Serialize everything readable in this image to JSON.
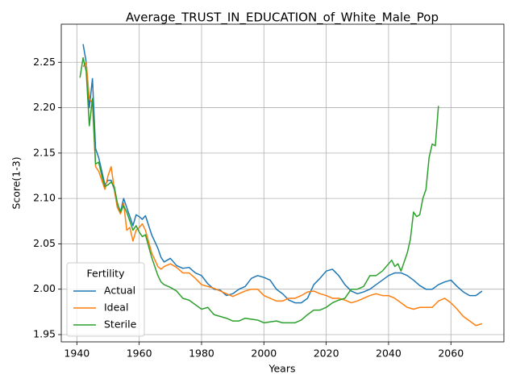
{
  "chart_data": {
    "type": "line",
    "title": "Average_TRUST_IN_EDUCATION_of_White_Male_Pop",
    "xlabel": "Years",
    "ylabel": "Score(1-3)",
    "legend_title": "Fertility",
    "legend": "lower left",
    "grid": true,
    "xlim": [
      1935,
      2077
    ],
    "xticks": [
      1940,
      1960,
      1980,
      2000,
      2020,
      2040,
      2060
    ],
    "ylim": [
      1.942,
      2.292
    ],
    "yticks": [
      1.95,
      {
        "value": 2,
        "label": "2.00"
      },
      2.05,
      {
        "value": 2.1,
        "label": "2.10"
      },
      2.15,
      {
        "value": 2.2,
        "label": "2.20"
      },
      2.25
    ],
    "series": [
      {
        "name": "Actual",
        "color": "#1f77b4",
        "x": [
          1942,
          1943,
          1944,
          1945,
          1946,
          1947,
          1948,
          1949,
          1950,
          1951,
          1952,
          1953,
          1954,
          1955,
          1956,
          1957,
          1958,
          1959,
          1960,
          1961,
          1962,
          1964,
          1966,
          1967,
          1968,
          1970,
          1972,
          1974,
          1976,
          1978,
          1980,
          1982,
          1984,
          1986,
          1988,
          1990,
          1992,
          1994,
          1996,
          1998,
          2000,
          2002,
          2004,
          2006,
          2008,
          2010,
          2012,
          2014,
          2016,
          2018,
          2020,
          2022,
          2024,
          2026,
          2028,
          2030,
          2032,
          2034,
          2036,
          2038,
          2040,
          2042,
          2044,
          2046,
          2048,
          2050,
          2052,
          2054,
          2056,
          2058,
          2060,
          2062,
          2064,
          2066,
          2068,
          2070
        ],
        "values": [
          2.27,
          2.25,
          2.2,
          2.232,
          2.155,
          2.145,
          2.13,
          2.115,
          2.12,
          2.12,
          2.11,
          2.09,
          2.085,
          2.1,
          2.09,
          2.08,
          2.07,
          2.082,
          2.08,
          2.077,
          2.081,
          2.06,
          2.045,
          2.035,
          2.03,
          2.034,
          2.026,
          2.023,
          2.024,
          2.018,
          2.015,
          2.006,
          2.0,
          1.999,
          1.993,
          1.995,
          2.0,
          2.003,
          2.012,
          2.015,
          2.013,
          2.01,
          2.0,
          1.995,
          1.988,
          1.985,
          1.985,
          1.99,
          2.005,
          2.012,
          2.02,
          2.022,
          2.015,
          2.005,
          1.998,
          1.995,
          1.997,
          2.0,
          2.005,
          2.01,
          2.015,
          2.018,
          2.018,
          2.015,
          2.01,
          2.004,
          2.0,
          2.0,
          2.005,
          2.008,
          2.01,
          2.003,
          1.997,
          1.993,
          1.993,
          1.998
        ]
      },
      {
        "name": "Ideal",
        "color": "#ff7f0e",
        "x": [
          1942,
          1943,
          1944,
          1945,
          1946,
          1947,
          1948,
          1949,
          1950,
          1951,
          1952,
          1953,
          1954,
          1955,
          1956,
          1957,
          1958,
          1959,
          1960,
          1961,
          1962,
          1964,
          1966,
          1967,
          1968,
          1970,
          1972,
          1974,
          1976,
          1978,
          1980,
          1982,
          1984,
          1986,
          1988,
          1990,
          1992,
          1994,
          1996,
          1998,
          2000,
          2002,
          2004,
          2006,
          2008,
          2010,
          2012,
          2014,
          2016,
          2018,
          2020,
          2022,
          2024,
          2026,
          2028,
          2030,
          2032,
          2034,
          2036,
          2038,
          2040,
          2042,
          2044,
          2046,
          2048,
          2050,
          2052,
          2054,
          2056,
          2058,
          2060,
          2062,
          2064,
          2066,
          2068,
          2070
        ],
        "values": [
          2.245,
          2.25,
          2.21,
          2.205,
          2.135,
          2.13,
          2.12,
          2.11,
          2.125,
          2.135,
          2.11,
          2.09,
          2.083,
          2.095,
          2.065,
          2.068,
          2.053,
          2.065,
          2.068,
          2.072,
          2.065,
          2.04,
          2.025,
          2.022,
          2.025,
          2.028,
          2.024,
          2.018,
          2.018,
          2.012,
          2.005,
          2.003,
          2.001,
          1.998,
          1.995,
          1.992,
          1.995,
          1.998,
          2.0,
          2.0,
          1.993,
          1.99,
          1.987,
          1.987,
          1.99,
          1.99,
          1.993,
          1.997,
          1.998,
          1.995,
          1.993,
          1.99,
          1.99,
          1.988,
          1.985,
          1.987,
          1.99,
          1.993,
          1.995,
          1.993,
          1.993,
          1.99,
          1.985,
          1.98,
          1.978,
          1.98,
          1.98,
          1.98,
          1.987,
          1.99,
          1.985,
          1.978,
          1.97,
          1.965,
          1.96,
          1.962
        ]
      },
      {
        "name": "Sterile",
        "color": "#2ca02c",
        "x": [
          1941,
          1942,
          1943,
          1944,
          1945,
          1946,
          1947,
          1948,
          1949,
          1950,
          1951,
          1952,
          1953,
          1954,
          1955,
          1956,
          1957,
          1958,
          1959,
          1960,
          1961,
          1962,
          1964,
          1966,
          1967,
          1968,
          1970,
          1972,
          1974,
          1976,
          1978,
          1980,
          1982,
          1984,
          1986,
          1988,
          1990,
          1992,
          1994,
          1996,
          1998,
          2000,
          2002,
          2004,
          2006,
          2008,
          2010,
          2012,
          2014,
          2016,
          2018,
          2020,
          2022,
          2024,
          2026,
          2028,
          2030,
          2032,
          2034,
          2036,
          2038,
          2040,
          2041,
          2042,
          2043,
          2044,
          2045,
          2046,
          2047,
          2048,
          2049,
          2050,
          2051,
          2052,
          2053,
          2054,
          2055,
          2056
        ],
        "values": [
          2.233,
          2.255,
          2.24,
          2.18,
          2.21,
          2.138,
          2.14,
          2.125,
          2.113,
          2.115,
          2.118,
          2.113,
          2.095,
          2.085,
          2.092,
          2.085,
          2.075,
          2.065,
          2.07,
          2.063,
          2.058,
          2.06,
          2.035,
          2.015,
          2.008,
          2.005,
          2.002,
          1.998,
          1.99,
          1.988,
          1.983,
          1.978,
          1.98,
          1.972,
          1.97,
          1.968,
          1.965,
          1.965,
          1.968,
          1.967,
          1.966,
          1.963,
          1.964,
          1.965,
          1.963,
          1.963,
          1.963,
          1.966,
          1.972,
          1.977,
          1.977,
          1.98,
          1.985,
          1.988,
          1.99,
          2.0,
          2.0,
          2.003,
          2.015,
          2.015,
          2.02,
          2.028,
          2.032,
          2.025,
          2.028,
          2.02,
          2.03,
          2.04,
          2.055,
          2.085,
          2.08,
          2.082,
          2.1,
          2.11,
          2.145,
          2.16,
          2.158,
          2.202
        ]
      }
    ]
  }
}
